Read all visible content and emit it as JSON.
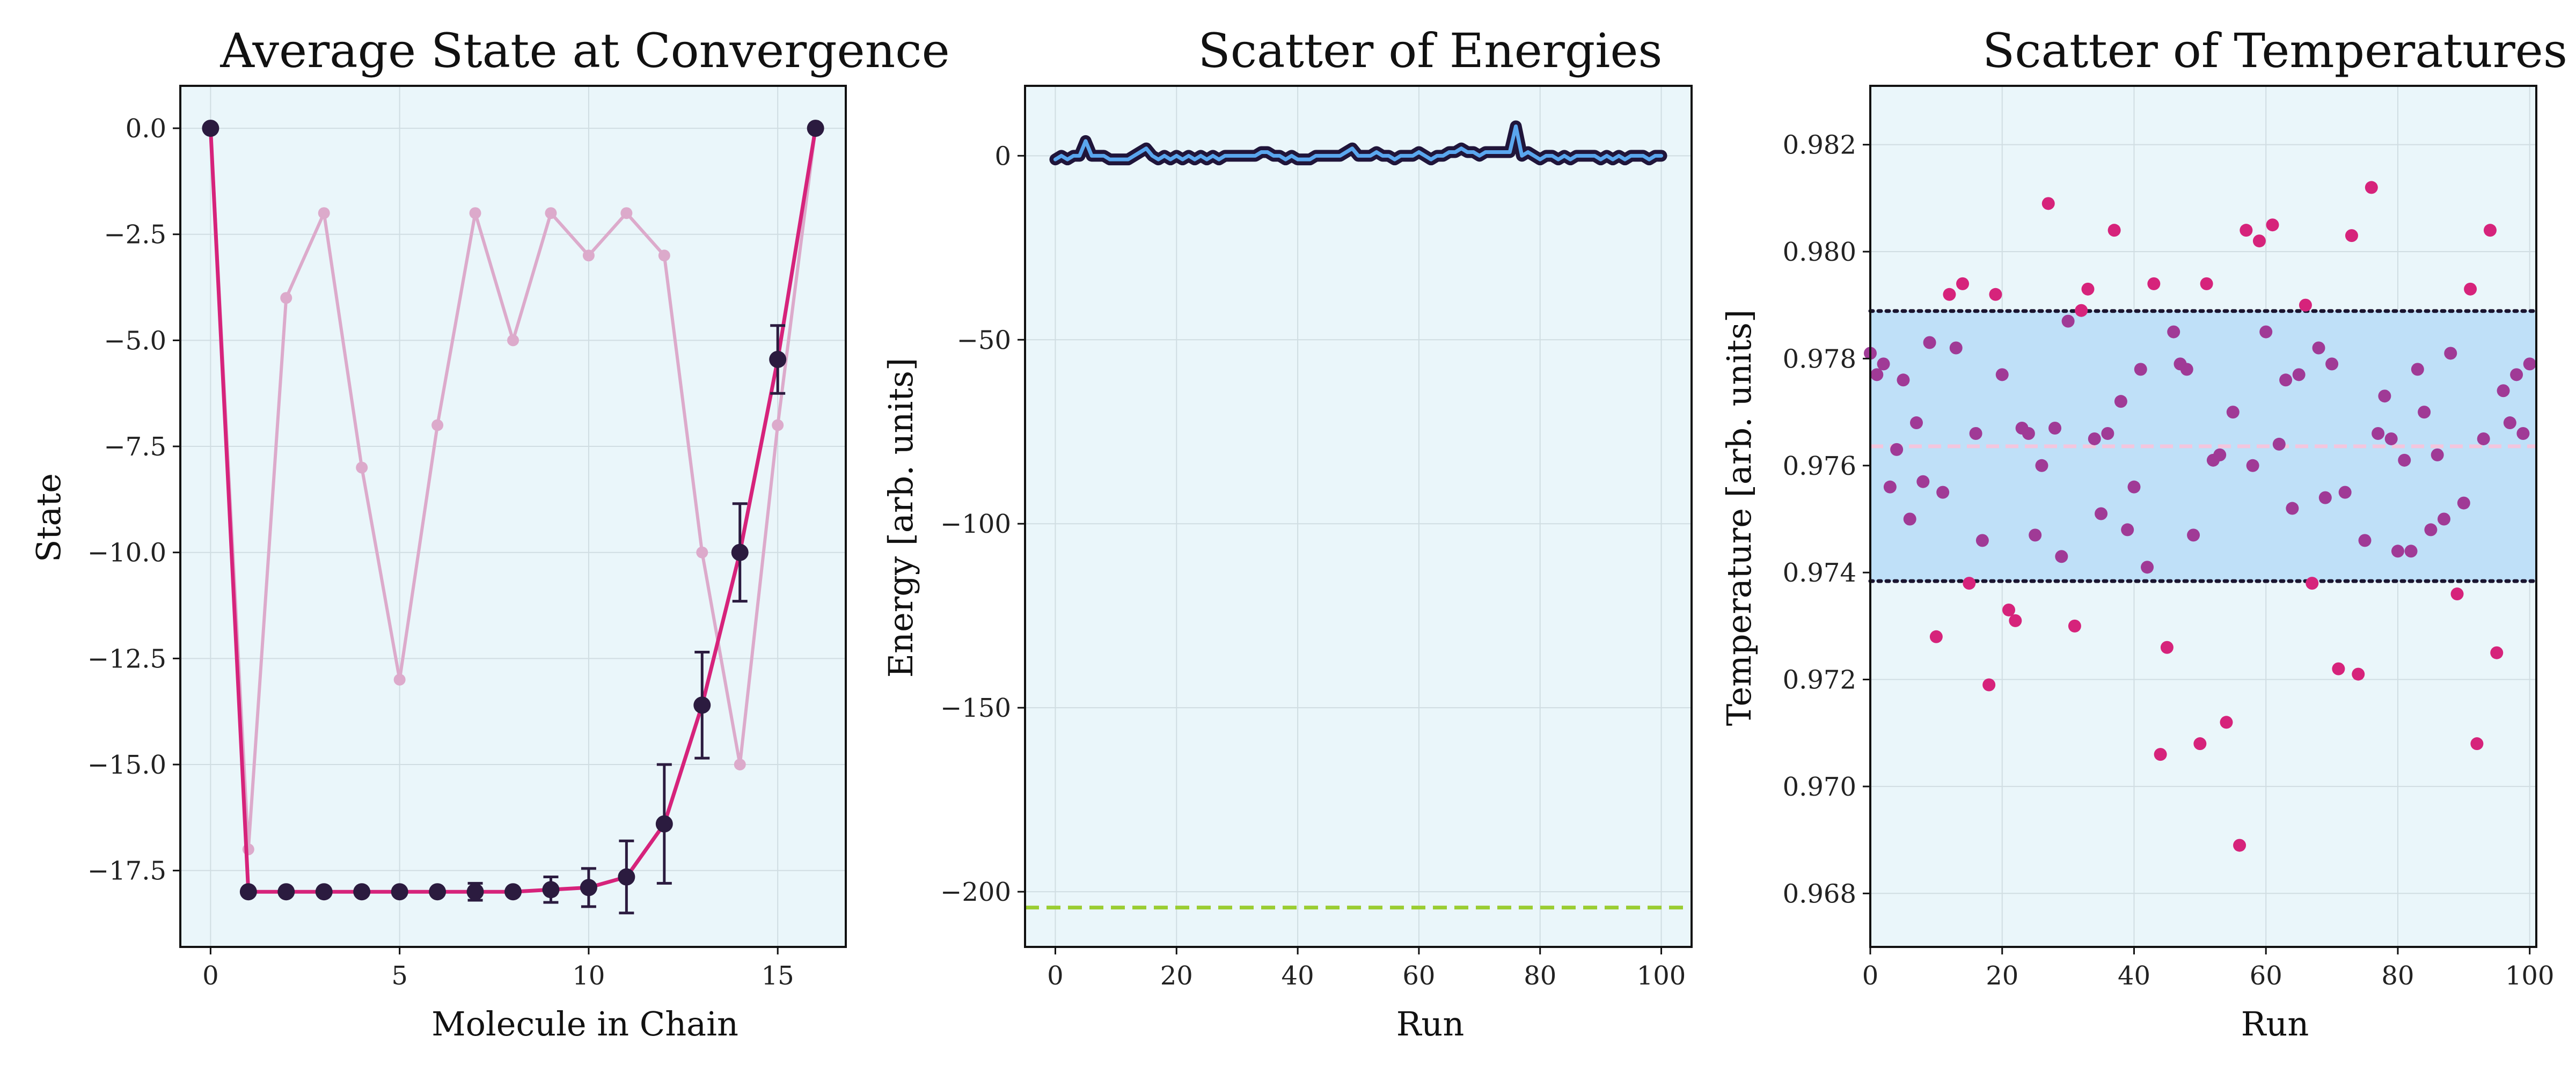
{
  "colors": {
    "background": "#ffffff",
    "panel_bg": "#eaf6fa",
    "grid": "#d0dde2",
    "frame": "#111111",
    "magenta": "#d6237b",
    "pink_faint": "#dcaacb",
    "dark_marker": "#2b1b3f",
    "energy_outline": "#20153a",
    "energy_fill": "#5aa6ee",
    "lime_dashed": "#9acd32",
    "band_fill": "#bfe0f8",
    "band_dotted": "#1a1530",
    "mean_line": "#f3c6de",
    "temp_scatter_in_band": "#a03a96",
    "temp_scatter_out_band": "#d6237b"
  },
  "chart_data": [
    {
      "type": "line",
      "title": "Average State at Convergence",
      "xlabel": "Molecule in Chain",
      "ylabel": "State",
      "xlim": [
        -0.8,
        16.8
      ],
      "ylim": [
        -19.3,
        1.0
      ],
      "xticks": [
        0,
        5,
        10,
        15
      ],
      "xtick_labels": [
        "0",
        "5",
        "10",
        "15"
      ],
      "yticks": [
        0.0,
        -2.5,
        -5.0,
        -7.5,
        -10.0,
        -12.5,
        -15.0,
        -17.5
      ],
      "ytick_labels": [
        "0.0",
        "−2.5",
        "−5.0",
        "−7.5",
        "−10.0",
        "−12.5",
        "−15.0",
        "−17.5"
      ],
      "grid": true,
      "series": [
        {
          "style": "faint",
          "x": [
            0,
            1,
            2,
            3,
            4,
            5,
            6,
            7,
            8,
            9,
            10,
            11,
            12,
            13,
            14,
            15,
            16
          ],
          "y": [
            0,
            -17,
            -4,
            -2,
            -8,
            -13,
            -7,
            -2,
            -5,
            -2,
            -3,
            -2,
            -3,
            -10,
            -15,
            -7,
            0
          ]
        },
        {
          "style": "mean_with_errorbars",
          "x": [
            0,
            1,
            2,
            3,
            4,
            5,
            6,
            7,
            8,
            9,
            10,
            11,
            12,
            13,
            14,
            15,
            16
          ],
          "y": [
            0,
            -18,
            -18,
            -18,
            -18,
            -18,
            -18,
            -18,
            -18,
            -17.95,
            -17.9,
            -17.65,
            -16.4,
            -13.6,
            -10.0,
            -5.45,
            0
          ],
          "err": [
            0,
            0,
            0,
            0,
            0,
            0,
            0,
            0.2,
            0,
            0.3,
            0.45,
            0.85,
            1.4,
            1.25,
            1.15,
            0.8,
            0
          ]
        }
      ]
    },
    {
      "type": "line",
      "title": "Scatter of Energies",
      "xlabel": "Run",
      "ylabel": "Energy [arb. units]",
      "xlim": [
        -5,
        105
      ],
      "ylim": [
        -215,
        19
      ],
      "xticks": [
        0,
        20,
        40,
        60,
        80,
        100
      ],
      "xtick_labels": [
        "0",
        "20",
        "40",
        "60",
        "80",
        "100"
      ],
      "yticks": [
        0,
        -50,
        -100,
        -150,
        -200
      ],
      "ytick_labels": [
        "0",
        "−50",
        "−100",
        "−150",
        "−200"
      ],
      "grid": true,
      "reference_line": -204.3,
      "series": [
        {
          "name": "",
          "x": [
            0,
            1,
            2,
            3,
            4,
            5,
            6,
            7,
            8,
            9,
            10,
            11,
            12,
            13,
            14,
            15,
            16,
            17,
            18,
            19,
            20,
            21,
            22,
            23,
            24,
            25,
            26,
            27,
            28,
            29,
            30,
            31,
            32,
            33,
            34,
            35,
            36,
            37,
            38,
            39,
            40,
            41,
            42,
            43,
            44,
            45,
            46,
            47,
            48,
            49,
            50,
            51,
            52,
            53,
            54,
            55,
            56,
            57,
            58,
            59,
            60,
            61,
            62,
            63,
            64,
            65,
            66,
            67,
            68,
            69,
            70,
            71,
            72,
            73,
            74,
            75,
            76,
            77,
            78,
            79,
            80,
            81,
            82,
            83,
            84,
            85,
            86,
            87,
            88,
            89,
            90,
            91,
            92,
            93,
            94,
            95,
            96,
            97,
            98,
            99,
            100
          ],
          "y": [
            -1,
            0,
            -1,
            0,
            0,
            4,
            0,
            0,
            0,
            -1,
            -1,
            -1,
            -1,
            0,
            1,
            2,
            0,
            -1,
            0,
            -1,
            0,
            -1,
            0,
            -1,
            0,
            -1,
            0,
            -1,
            0,
            0,
            0,
            0,
            0,
            0,
            1,
            1,
            0,
            0,
            -1,
            0,
            -1,
            -1,
            -1,
            0,
            0,
            0,
            0,
            0,
            1,
            2,
            0,
            0,
            0,
            1,
            0,
            0,
            -1,
            0,
            0,
            0,
            1,
            0,
            -1,
            0,
            0,
            1,
            1,
            2,
            1,
            1,
            0,
            1,
            1,
            1,
            1,
            1,
            8,
            0,
            1,
            0,
            -1,
            0,
            0,
            -1,
            0,
            -1,
            0,
            0,
            0,
            0,
            -1,
            0,
            -1,
            0,
            -1,
            0,
            0,
            0,
            -1,
            0,
            0
          ]
        }
      ]
    },
    {
      "type": "scatter",
      "title": "Scatter of Temperatures",
      "xlabel": "Run",
      "ylabel": "Temperature [arb. units]",
      "xlim": [
        0,
        101
      ],
      "ylim": [
        0.967,
        0.9831
      ],
      "xticks": [
        0,
        20,
        40,
        60,
        80,
        100
      ],
      "xtick_labels": [
        "0",
        "20",
        "40",
        "60",
        "80",
        "100"
      ],
      "yticks": [
        0.982,
        0.98,
        0.978,
        0.976,
        0.974,
        0.972,
        0.97,
        0.968
      ],
      "ytick_labels": [
        "0.982",
        "0.980",
        "0.978",
        "0.976",
        "0.974",
        "0.972",
        "0.970",
        "0.968"
      ],
      "grid": true,
      "band": [
        0.97384,
        0.97889
      ],
      "mean": 0.97636,
      "series": [
        {
          "name": "",
          "x": [
            0,
            1,
            2,
            3,
            4,
            5,
            6,
            7,
            8,
            9,
            10,
            11,
            12,
            13,
            14,
            15,
            16,
            17,
            18,
            19,
            20,
            21,
            22,
            23,
            24,
            25,
            26,
            27,
            28,
            29,
            30,
            31,
            32,
            33,
            34,
            35,
            36,
            37,
            38,
            39,
            40,
            41,
            42,
            43,
            44,
            45,
            46,
            47,
            48,
            49,
            50,
            51,
            52,
            53,
            54,
            55,
            56,
            57,
            58,
            59,
            60,
            61,
            62,
            63,
            64,
            65,
            66,
            67,
            68,
            69,
            70,
            71,
            72,
            73,
            74,
            75,
            76,
            77,
            78,
            79,
            80,
            81,
            82,
            83,
            84,
            85,
            86,
            87,
            88,
            89,
            90,
            91,
            92,
            93,
            94,
            95,
            96,
            97,
            98,
            99,
            100
          ],
          "y": [
            0.9781,
            0.9777,
            0.9779,
            0.9756,
            0.9763,
            0.9776,
            0.975,
            0.9768,
            0.9757,
            0.9783,
            0.9728,
            0.9755,
            0.9792,
            0.9782,
            0.9794,
            0.9738,
            0.9766,
            0.9746,
            0.9719,
            0.9792,
            0.9777,
            0.9733,
            0.9731,
            0.9767,
            0.9766,
            0.9747,
            0.976,
            0.9809,
            0.9767,
            0.9743,
            0.9787,
            0.973,
            0.9789,
            0.9793,
            0.9765,
            0.9751,
            0.9766,
            0.9804,
            0.9772,
            0.9748,
            0.9756,
            0.9778,
            0.9741,
            0.9794,
            0.9706,
            0.9726,
            0.9785,
            0.9779,
            0.9778,
            0.9747,
            0.9708,
            0.9794,
            0.9761,
            0.9762,
            0.9712,
            0.977,
            0.9689,
            0.9804,
            0.976,
            0.9802,
            0.9785,
            0.9805,
            0.9764,
            0.9776,
            0.9752,
            0.9777,
            0.979,
            0.9738,
            0.9782,
            0.9754,
            0.9779,
            0.9722,
            0.9755,
            0.9803,
            0.9721,
            0.9746,
            0.9812,
            0.9766,
            0.9773,
            0.9765,
            0.9744,
            0.9761,
            0.9744,
            0.9778,
            0.977,
            0.9748,
            0.9762,
            0.975,
            0.9781,
            0.9736,
            0.9753,
            0.9793,
            0.9708,
            0.9765,
            0.9804,
            0.9725,
            0.9774,
            0.9768,
            0.9777,
            0.9766,
            0.9779
          ]
        }
      ]
    }
  ]
}
